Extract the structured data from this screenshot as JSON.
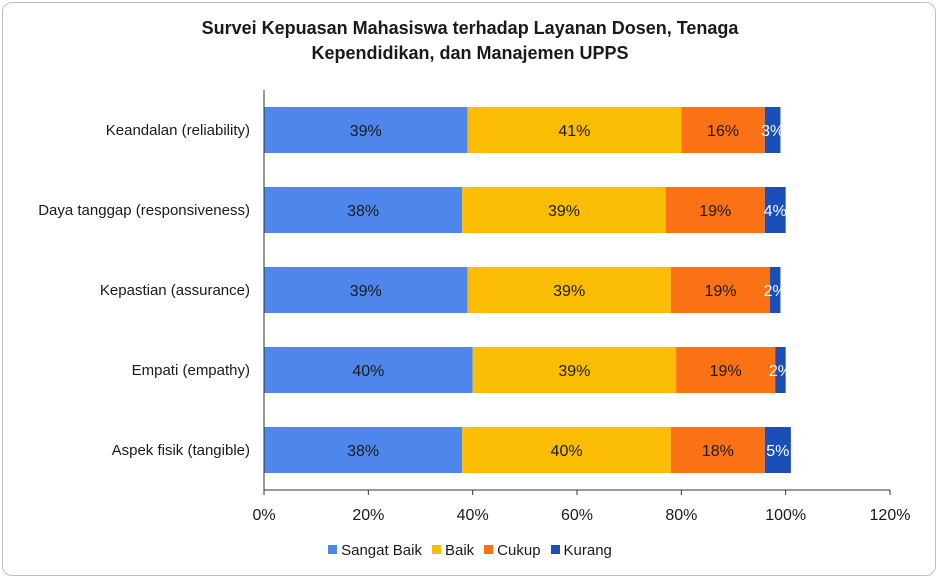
{
  "chart_data": {
    "type": "bar",
    "orientation": "horizontal",
    "stacked": true,
    "title_lines": [
      "Survei Kepuasan Mahasiswa terhadap Layanan Dosen, Tenaga",
      "Kependidikan, dan Manajemen UPPS"
    ],
    "categories": [
      "Keandalan (reliability)",
      "Daya tanggap (responsiveness)",
      "Kepastian (assurance)",
      "Empati (empathy)",
      "Aspek fisik (tangible)"
    ],
    "series": [
      {
        "name": "Sangat Baik",
        "color": "#4F86EC",
        "label_color": "#1a1a1a",
        "values": [
          39,
          38,
          39,
          40,
          38
        ]
      },
      {
        "name": "Baik",
        "color": "#FBBC04",
        "label_color": "#1a1a1a",
        "values": [
          41,
          39,
          39,
          39,
          40
        ]
      },
      {
        "name": "Cukup",
        "color": "#FA7116",
        "label_color": "#1a1a1a",
        "values": [
          16,
          19,
          19,
          19,
          18
        ]
      },
      {
        "name": "Kurang",
        "color": "#1A4FB8",
        "label_color": "#ffffff",
        "values": [
          3,
          4,
          2,
          2,
          5
        ]
      }
    ],
    "xlim": [
      0,
      120
    ],
    "xticks": [
      "0%",
      "20%",
      "40%",
      "60%",
      "80%",
      "100%",
      "120%"
    ],
    "legend_position": "bottom",
    "grid": false
  }
}
